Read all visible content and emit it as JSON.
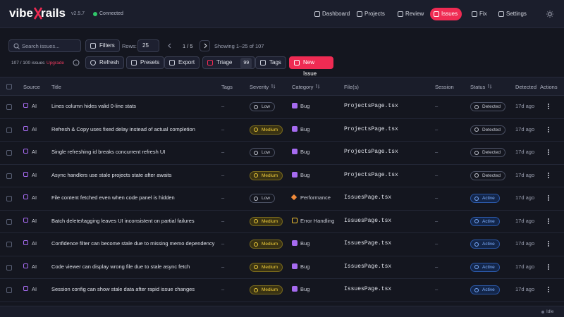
{
  "header": {
    "logo_left": "vibe",
    "logo_right": "rails",
    "version": "v2.5.7",
    "connection": "Connected",
    "nav": [
      {
        "label": "Dashboard",
        "active": false
      },
      {
        "label": "Projects",
        "active": false
      },
      {
        "label": "Review",
        "active": false
      },
      {
        "label": "Issues",
        "active": true
      },
      {
        "label": "Fix",
        "active": false
      },
      {
        "label": "Settings",
        "active": false
      }
    ]
  },
  "toolbar": {
    "search_placeholder": "Search issues...",
    "filters": "Filters",
    "rows_label": "Rows:",
    "rows_value": "25",
    "page": "1 / 5",
    "showing": "Showing 1–25 of 107",
    "quota": "107 / 100 issues",
    "upgrade": "Upgrade",
    "refresh": "Refresh",
    "presets": "Presets",
    "export": "Export",
    "triage": "Triage",
    "triage_count": "99",
    "tags": "Tags",
    "new_issue": "New Issue"
  },
  "table": {
    "columns": [
      "Source",
      "Title",
      "Tags",
      "Severity",
      "Category",
      "File(s)",
      "Session",
      "Status",
      "Detected",
      "Actions"
    ],
    "rows": [
      [
        "AI",
        "Lines column hides valid 0-line stats",
        "–",
        "Low",
        "Bug",
        "ProjectsPage.tsx",
        "–",
        "Detected",
        "17d ago"
      ],
      [
        "AI",
        "Refresh & Copy uses fixed delay instead of actual completion",
        "–",
        "Medium",
        "Bug",
        "ProjectsPage.tsx",
        "–",
        "Detected",
        "17d ago"
      ],
      [
        "AI",
        "Single refreshing id breaks concurrent refresh UI",
        "–",
        "Low",
        "Bug",
        "ProjectsPage.tsx",
        "–",
        "Detected",
        "17d ago"
      ],
      [
        "AI",
        "Async handlers use stale projects state after awaits",
        "–",
        "Medium",
        "Bug",
        "ProjectsPage.tsx",
        "–",
        "Detected",
        "17d ago"
      ],
      [
        "AI",
        "File content fetched even when code panel is hidden",
        "–",
        "Low",
        "Performance",
        "IssuesPage.tsx",
        "–",
        "Active",
        "17d ago"
      ],
      [
        "AI",
        "Batch delete/tagging leaves UI inconsistent on partial failures",
        "–",
        "Medium",
        "Error Handling",
        "IssuesPage.tsx",
        "–",
        "Active",
        "17d ago"
      ],
      [
        "AI",
        "Confidence filter can become stale due to missing memo dependency",
        "–",
        "Medium",
        "Bug",
        "IssuesPage.tsx",
        "–",
        "Active",
        "17d ago"
      ],
      [
        "AI",
        "Code viewer can display wrong file due to stale async fetch",
        "–",
        "Medium",
        "Bug",
        "IssuesPage.tsx",
        "–",
        "Active",
        "17d ago"
      ],
      [
        "AI",
        "Session config can show stale data after rapid issue changes",
        "–",
        "Medium",
        "Bug",
        "IssuesPage.tsx",
        "–",
        "Active",
        "17d ago"
      ]
    ]
  },
  "footer": {
    "status": "Idle"
  }
}
